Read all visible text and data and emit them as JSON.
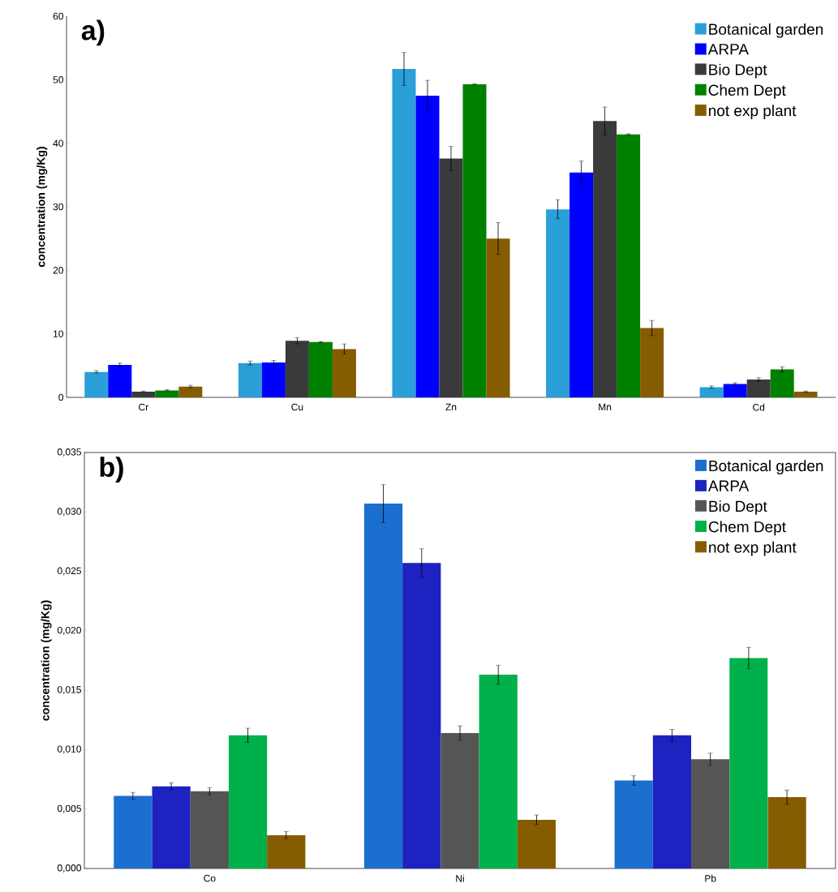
{
  "chart_data": [
    {
      "type": "bar",
      "title": "a)",
      "ylabel": "concentration (mg/Kg)",
      "categories": [
        "Cr",
        "Cu",
        "Zn",
        "Mn",
        "Cd"
      ],
      "ylim": [
        0,
        60
      ],
      "yticks": [
        0,
        10,
        20,
        30,
        40,
        50,
        60
      ],
      "legend": "top right",
      "series": [
        {
          "name": "Botanical garden",
          "color": "#2a9fd8",
          "values": [
            4.0,
            5.4,
            51.7,
            29.6,
            1.6
          ],
          "errors": [
            0.2,
            0.3,
            2.6,
            1.5,
            0.2
          ]
        },
        {
          "name": "ARPA",
          "color": "#0000ff",
          "values": [
            5.1,
            5.5,
            47.5,
            35.4,
            2.1
          ],
          "errors": [
            0.3,
            0.3,
            2.4,
            1.8,
            0.2
          ]
        },
        {
          "name": "Bio Dept",
          "color": "#3a3a3a",
          "values": [
            0.9,
            8.9,
            37.6,
            43.5,
            2.8
          ],
          "errors": [
            0.1,
            0.5,
            1.9,
            2.2,
            0.3
          ]
        },
        {
          "name": "Chem Dept",
          "color": "#008000",
          "values": [
            1.1,
            8.7,
            49.3,
            41.4,
            4.4
          ],
          "errors": [
            0.1,
            0.1,
            0.1,
            0.1,
            0.4
          ]
        },
        {
          "name": "not exp plant",
          "color": "#855c00",
          "values": [
            1.7,
            7.6,
            25.0,
            10.9,
            0.9
          ],
          "errors": [
            0.2,
            0.8,
            2.5,
            1.2,
            0.1
          ]
        }
      ]
    },
    {
      "type": "bar",
      "title": "b)",
      "ylabel": "concentration (mg/Kg)",
      "categories": [
        "Co",
        "Ni",
        "Pb"
      ],
      "ylim": [
        0,
        0.035
      ],
      "yticks": [
        {
          "value": 0,
          "label": "0,000"
        },
        {
          "value": 0.005,
          "label": "0,005"
        },
        {
          "value": 0.01,
          "label": "0,010"
        },
        {
          "value": 0.015,
          "label": "0,015"
        },
        {
          "value": 0.02,
          "label": "0,020"
        },
        {
          "value": 0.025,
          "label": "0,025"
        },
        {
          "value": 0.03,
          "label": "0,030"
        },
        {
          "value": 0.035,
          "label": "0,035"
        }
      ],
      "legend": "top right",
      "series": [
        {
          "name": "Botanical garden",
          "color": "#1a6fcf",
          "values": [
            0.0061,
            0.0307,
            0.0074
          ],
          "errors": [
            0.0003,
            0.0016,
            0.0004
          ]
        },
        {
          "name": "ARPA",
          "color": "#1e22c0",
          "values": [
            0.0069,
            0.0257,
            0.0112
          ],
          "errors": [
            0.0003,
            0.0012,
            0.0005
          ]
        },
        {
          "name": "Bio Dept",
          "color": "#555555",
          "values": [
            0.0065,
            0.0114,
            0.0092
          ],
          "errors": [
            0.0003,
            0.0006,
            0.0005
          ]
        },
        {
          "name": "Chem Dept",
          "color": "#00b04a",
          "values": [
            0.0112,
            0.0163,
            0.0177
          ],
          "errors": [
            0.0006,
            0.0008,
            0.0009
          ]
        },
        {
          "name": "not exp plant",
          "color": "#855c00",
          "values": [
            0.0028,
            0.0041,
            0.006
          ],
          "errors": [
            0.0003,
            0.0004,
            0.0006
          ]
        }
      ]
    }
  ]
}
